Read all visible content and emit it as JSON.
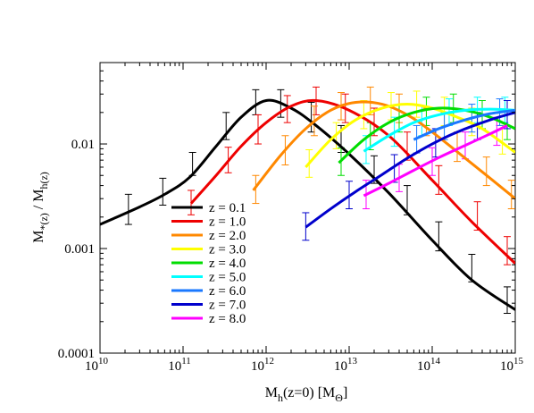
{
  "chart_data": {
    "type": "line",
    "x_scale": "log",
    "y_scale": "log",
    "xlim": [
      10000000000.0,
      1000000000000000.0
    ],
    "ylim": [
      0.0001,
      0.06
    ],
    "xlabel": {
      "main": "M",
      "sub": "h",
      "rest": "(z=0) [M",
      "sub2": "Θ",
      "end": "]"
    },
    "ylabel": {
      "m1": "M",
      "s1": "*(z)",
      "mid": " / M",
      "s2": "h(z)"
    },
    "x_ticks": [
      {
        "value": 10000000000.0,
        "base": "10",
        "exp": "10"
      },
      {
        "value": 100000000000.0,
        "base": "10",
        "exp": "11"
      },
      {
        "value": 1000000000000.0,
        "base": "10",
        "exp": "12"
      },
      {
        "value": 10000000000000.0,
        "base": "10",
        "exp": "13"
      },
      {
        "value": 100000000000000.0,
        "base": "10",
        "exp": "14"
      },
      {
        "value": 1000000000000000.0,
        "base": "10",
        "exp": "15"
      }
    ],
    "y_ticks": [
      {
        "value": 0.0001,
        "label": "0.0001"
      },
      {
        "value": 0.001,
        "label": "0.001"
      },
      {
        "value": 0.01,
        "label": "0.01"
      }
    ],
    "legend_position": "lower-left",
    "series": [
      {
        "name": "z = 0.1",
        "color": "#000000",
        "x": [
          10000000000.0,
          30000000000.0,
          60000000000.0,
          120000000000.0,
          250000000000.0,
          500000000000.0,
          1000000000000.0,
          2000000000000.0,
          4000000000000.0,
          10000000000000.0,
          30000000000000.0,
          100000000000000.0,
          300000000000000.0,
          1000000000000000.0
        ],
        "y": [
          0.0017,
          0.0025,
          0.0033,
          0.0048,
          0.0095,
          0.018,
          0.026,
          0.022,
          0.015,
          0.008,
          0.0034,
          0.0012,
          0.0005,
          0.00026
        ],
        "errors": [
          {
            "x": 22000000000.0,
            "y": 0.0024,
            "lo": 0.0017,
            "hi": 0.0033
          },
          {
            "x": 57000000000.0,
            "y": 0.0036,
            "lo": 0.0026,
            "hi": 0.0047
          },
          {
            "x": 130000000000.0,
            "y": 0.0066,
            "lo": 0.005,
            "hi": 0.0083
          },
          {
            "x": 330000000000.0,
            "y": 0.015,
            "lo": 0.011,
            "hi": 0.02
          },
          {
            "x": 750000000000.0,
            "y": 0.025,
            "lo": 0.019,
            "hi": 0.033
          },
          {
            "x": 1500000000000.0,
            "y": 0.024,
            "lo": 0.018,
            "hi": 0.033
          },
          {
            "x": 3500000000000.0,
            "y": 0.018,
            "lo": 0.013,
            "hi": 0.025
          },
          {
            "x": 8000000000000.0,
            "y": 0.011,
            "lo": 0.0083,
            "hi": 0.015
          },
          {
            "x": 20000000000000.0,
            "y": 0.0057,
            "lo": 0.0042,
            "hi": 0.0077
          },
          {
            "x": 50000000000000.0,
            "y": 0.0029,
            "lo": 0.0021,
            "hi": 0.004
          },
          {
            "x": 120000000000000.0,
            "y": 0.0013,
            "lo": 0.00095,
            "hi": 0.0018
          },
          {
            "x": 300000000000000.0,
            "y": 0.00065,
            "lo": 0.00048,
            "hi": 0.00088
          },
          {
            "x": 800000000000000.0,
            "y": 0.00032,
            "lo": 0.00024,
            "hi": 0.00043
          }
        ]
      },
      {
        "name": "z = 1.0",
        "color": "#ee0000",
        "x": [
          125000000000.0,
          250000000000.0,
          500000000000.0,
          1000000000000.0,
          2000000000000.0,
          4000000000000.0,
          10000000000000.0,
          30000000000000.0,
          100000000000000.0,
          300000000000000.0,
          1000000000000000.0
        ],
        "y": [
          0.0027,
          0.005,
          0.0095,
          0.016,
          0.023,
          0.026,
          0.021,
          0.012,
          0.0045,
          0.0018,
          0.00072
        ],
        "errors": [
          {
            "x": 125000000000.0,
            "y": 0.0027,
            "lo": 0.0021,
            "hi": 0.0036
          },
          {
            "x": 350000000000.0,
            "y": 0.0071,
            "lo": 0.0053,
            "hi": 0.0093
          },
          {
            "x": 800000000000.0,
            "y": 0.014,
            "lo": 0.01,
            "hi": 0.019
          },
          {
            "x": 1800000000000.0,
            "y": 0.022,
            "lo": 0.016,
            "hi": 0.029
          },
          {
            "x": 4000000000000.0,
            "y": 0.026,
            "lo": 0.019,
            "hi": 0.035
          },
          {
            "x": 9000000000000.0,
            "y": 0.022,
            "lo": 0.016,
            "hi": 0.03
          },
          {
            "x": 20000000000000.0,
            "y": 0.016,
            "lo": 0.012,
            "hi": 0.022
          },
          {
            "x": 50000000000000.0,
            "y": 0.0095,
            "lo": 0.007,
            "hi": 0.013
          },
          {
            "x": 120000000000000.0,
            "y": 0.0045,
            "lo": 0.0033,
            "hi": 0.0062
          },
          {
            "x": 350000000000000.0,
            "y": 0.002,
            "lo": 0.0015,
            "hi": 0.0028
          },
          {
            "x": 800000000000000.0,
            "y": 0.00095,
            "lo": 0.0007,
            "hi": 0.0013
          }
        ]
      },
      {
        "name": "z = 2.0",
        "color": "#ff8800",
        "x": [
          700000000000.0,
          1500000000000.0,
          3000000000000.0,
          6000000000000.0,
          12000000000000.0,
          25000000000000.0,
          50000000000000.0,
          100000000000000.0,
          300000000000000.0,
          1000000000000000.0
        ],
        "y": [
          0.0036,
          0.0078,
          0.014,
          0.021,
          0.025,
          0.024,
          0.019,
          0.013,
          0.0065,
          0.003
        ],
        "errors": [
          {
            "x": 750000000000.0,
            "y": 0.0037,
            "lo": 0.0027,
            "hi": 0.005
          },
          {
            "x": 1700000000000.0,
            "y": 0.0086,
            "lo": 0.0063,
            "hi": 0.012
          },
          {
            "x": 3800000000000.0,
            "y": 0.017,
            "lo": 0.012,
            "hi": 0.023
          },
          {
            "x": 8000000000000.0,
            "y": 0.023,
            "lo": 0.017,
            "hi": 0.031
          },
          {
            "x": 18000000000000.0,
            "y": 0.026,
            "lo": 0.019,
            "hi": 0.035
          },
          {
            "x": 40000000000000.0,
            "y": 0.022,
            "lo": 0.016,
            "hi": 0.03
          },
          {
            "x": 85000000000000.0,
            "y": 0.016,
            "lo": 0.012,
            "hi": 0.022
          },
          {
            "x": 200000000000000.0,
            "y": 0.0093,
            "lo": 0.0068,
            "hi": 0.013
          },
          {
            "x": 450000000000000.0,
            "y": 0.0055,
            "lo": 0.004,
            "hi": 0.0075
          },
          {
            "x": 900000000000000.0,
            "y": 0.0033,
            "lo": 0.0024,
            "hi": 0.0045
          }
        ]
      },
      {
        "name": "z = 3.0",
        "color": "#ffff00",
        "x": [
          3000000000000.0,
          6000000000000.0,
          12000000000000.0,
          25000000000000.0,
          50000000000000.0,
          100000000000000.0,
          200000000000000.0,
          400000000000000.0,
          1000000000000000.0
        ],
        "y": [
          0.006,
          0.011,
          0.017,
          0.022,
          0.024,
          0.022,
          0.018,
          0.014,
          0.0083
        ],
        "errors": [
          {
            "x": 3300000000000.0,
            "y": 0.0065,
            "lo": 0.0048,
            "hi": 0.0088
          },
          {
            "x": 7000000000000.0,
            "y": 0.012,
            "lo": 0.009,
            "hi": 0.016
          },
          {
            "x": 15000000000000.0,
            "y": 0.019,
            "lo": 0.014,
            "hi": 0.026
          },
          {
            "x": 32000000000000.0,
            "y": 0.023,
            "lo": 0.017,
            "hi": 0.031
          },
          {
            "x": 65000000000000.0,
            "y": 0.024,
            "lo": 0.018,
            "hi": 0.032
          },
          {
            "x": 140000000000000.0,
            "y": 0.021,
            "lo": 0.015,
            "hi": 0.028
          },
          {
            "x": 300000000000000.0,
            "y": 0.016,
            "lo": 0.012,
            "hi": 0.022
          },
          {
            "x": 700000000000000.0,
            "y": 0.011,
            "lo": 0.008,
            "hi": 0.015
          }
        ]
      },
      {
        "name": "z = 4.0",
        "color": "#00dd00",
        "x": [
          7500000000000.0,
          15000000000000.0,
          30000000000000.0,
          60000000000000.0,
          120000000000000.0,
          250000000000000.0,
          500000000000000.0,
          1000000000000000.0
        ],
        "y": [
          0.0066,
          0.011,
          0.016,
          0.02,
          0.022,
          0.021,
          0.018,
          0.014
        ],
        "errors": [
          {
            "x": 8000000000000.0,
            "y": 0.0068,
            "lo": 0.005,
            "hi": 0.0092
          },
          {
            "x": 18000000000000.0,
            "y": 0.012,
            "lo": 0.0088,
            "hi": 0.016
          },
          {
            "x": 40000000000000.0,
            "y": 0.018,
            "lo": 0.013,
            "hi": 0.024
          },
          {
            "x": 85000000000000.0,
            "y": 0.021,
            "lo": 0.015,
            "hi": 0.028
          },
          {
            "x": 180000000000000.0,
            "y": 0.022,
            "lo": 0.016,
            "hi": 0.03
          },
          {
            "x": 400000000000000.0,
            "y": 0.019,
            "lo": 0.014,
            "hi": 0.026
          },
          {
            "x": 800000000000000.0,
            "y": 0.015,
            "lo": 0.011,
            "hi": 0.021
          }
        ]
      },
      {
        "name": "z = 5.0",
        "color": "#00ffff",
        "x": [
          15000000000000.0,
          30000000000000.0,
          60000000000000.0,
          120000000000000.0,
          250000000000000.0,
          500000000000000.0,
          1000000000000000.0
        ],
        "y": [
          0.0085,
          0.012,
          0.016,
          0.019,
          0.021,
          0.0215,
          0.021
        ],
        "errors": [
          {
            "x": 16000000000000.0,
            "y": 0.0088,
            "lo": 0.0065,
            "hi": 0.012
          },
          {
            "x": 35000000000000.0,
            "y": 0.013,
            "lo": 0.0095,
            "hi": 0.018
          },
          {
            "x": 75000000000000.0,
            "y": 0.017,
            "lo": 0.012,
            "hi": 0.023
          },
          {
            "x": 160000000000000.0,
            "y": 0.02,
            "lo": 0.015,
            "hi": 0.027
          },
          {
            "x": 350000000000000.0,
            "y": 0.021,
            "lo": 0.016,
            "hi": 0.028
          },
          {
            "x": 750000000000000.0,
            "y": 0.021,
            "lo": 0.016,
            "hi": 0.028
          }
        ]
      },
      {
        "name": "z = 6.0",
        "color": "#1a78ff",
        "x": [
          60000000000000.0,
          120000000000000.0,
          250000000000000.0,
          500000000000000.0,
          1000000000000000.0
        ],
        "y": [
          0.011,
          0.014,
          0.017,
          0.0195,
          0.021
        ],
        "errors": [
          {
            "x": 65000000000000.0,
            "y": 0.011,
            "lo": 0.0082,
            "hi": 0.015
          },
          {
            "x": 140000000000000.0,
            "y": 0.015,
            "lo": 0.011,
            "hi": 0.02
          },
          {
            "x": 300000000000000.0,
            "y": 0.018,
            "lo": 0.013,
            "hi": 0.024
          },
          {
            "x": 650000000000000.0,
            "y": 0.02,
            "lo": 0.015,
            "hi": 0.027
          }
        ]
      },
      {
        "name": "z = 7.0",
        "color": "#0000cc",
        "x": [
          3000000000000.0,
          6000000000000.0,
          12000000000000.0,
          25000000000000.0,
          50000000000000.0,
          100000000000000.0,
          200000000000000.0,
          500000000000000.0,
          1000000000000000.0
        ],
        "y": [
          0.0016,
          0.0024,
          0.0035,
          0.0051,
          0.0073,
          0.01,
          0.013,
          0.017,
          0.02
        ],
        "errors": [
          {
            "x": 3000000000000.0,
            "y": 0.0016,
            "lo": 0.0012,
            "hi": 0.0022
          },
          {
            "x": 10000000000000.0,
            "y": 0.0032,
            "lo": 0.0024,
            "hi": 0.0044
          },
          {
            "x": 35000000000000.0,
            "y": 0.0058,
            "lo": 0.0043,
            "hi": 0.0079
          },
          {
            "x": 110000000000000.0,
            "y": 0.01,
            "lo": 0.0075,
            "hi": 0.014
          },
          {
            "x": 350000000000000.0,
            "y": 0.015,
            "lo": 0.011,
            "hi": 0.02
          },
          {
            "x": 800000000000000.0,
            "y": 0.019,
            "lo": 0.014,
            "hi": 0.026
          }
        ]
      },
      {
        "name": "z = 8.0",
        "color": "#ff00ff",
        "x": [
          15000000000000.0,
          30000000000000.0,
          60000000000000.0,
          120000000000000.0,
          250000000000000.0,
          500000000000000.0,
          800000000000000.0
        ],
        "y": [
          0.0032,
          0.0042,
          0.0056,
          0.0074,
          0.0097,
          0.0125,
          0.015
        ],
        "errors": [
          {
            "x": 16000000000000.0,
            "y": 0.0033,
            "lo": 0.0024,
            "hi": 0.0045
          },
          {
            "x": 40000000000000.0,
            "y": 0.0047,
            "lo": 0.0035,
            "hi": 0.0064
          },
          {
            "x": 100000000000000.0,
            "y": 0.0068,
            "lo": 0.005,
            "hi": 0.0092
          },
          {
            "x": 250000000000000.0,
            "y": 0.0097,
            "lo": 0.0072,
            "hi": 0.013
          },
          {
            "x": 600000000000000.0,
            "y": 0.013,
            "lo": 0.0097,
            "hi": 0.018
          }
        ]
      }
    ]
  }
}
